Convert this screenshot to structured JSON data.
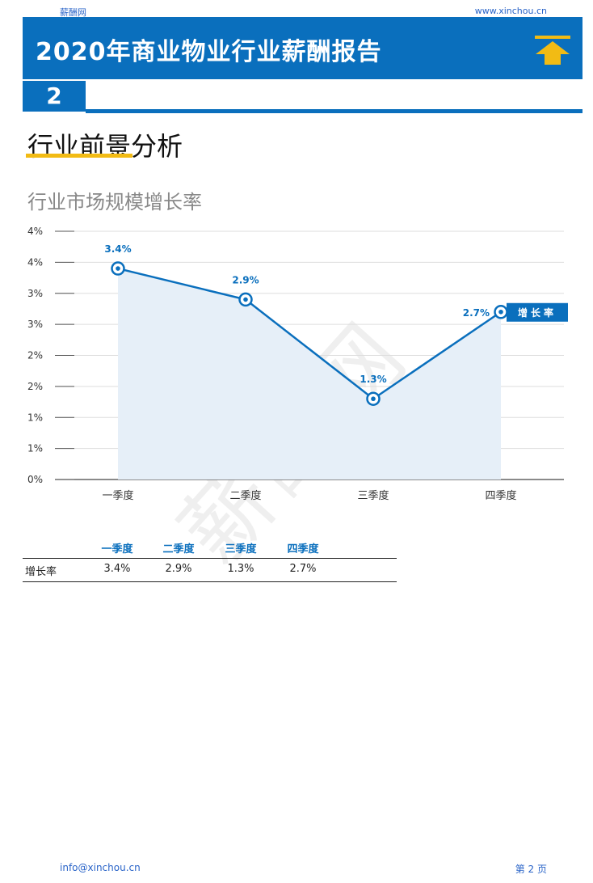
{
  "header": {
    "brand": "薪酬网",
    "url": "www.xinchou.cn",
    "title": "2020年商业物业行业薪酬报告",
    "page_number": "2"
  },
  "section": {
    "title": "行业前景分析"
  },
  "chart_title": "行业市场规模增长率",
  "watermark": "薪酬网",
  "colors": {
    "primary": "#0a6fbd",
    "accent": "#f2bb14",
    "area_fill": "#e6eff8"
  },
  "chart_data": {
    "type": "line",
    "title": "行业市场规模增长率",
    "categories": [
      "一季度",
      "二季度",
      "三季度",
      "四季度"
    ],
    "series": [
      {
        "name": "增长率",
        "values": [
          3.4,
          2.9,
          1.3,
          2.7
        ],
        "labels": [
          "3.4%",
          "2.9%",
          "1.3%",
          "2.7%"
        ]
      }
    ],
    "y_ticks": [
      "0%",
      "1%",
      "1%",
      "2%",
      "2%",
      "3%",
      "3%",
      "4%",
      "4%"
    ],
    "ylim": [
      0,
      4
    ],
    "grid": true,
    "legend_position": "right",
    "area_fill": true
  },
  "table": {
    "headers": [
      "一季度",
      "二季度",
      "三季度",
      "四季度"
    ],
    "row_label": "增长率",
    "values": [
      "3.4%",
      "2.9%",
      "1.3%",
      "2.7%"
    ]
  },
  "footer": {
    "email": "info@xinchou.cn",
    "page_label": "第 2 页"
  }
}
